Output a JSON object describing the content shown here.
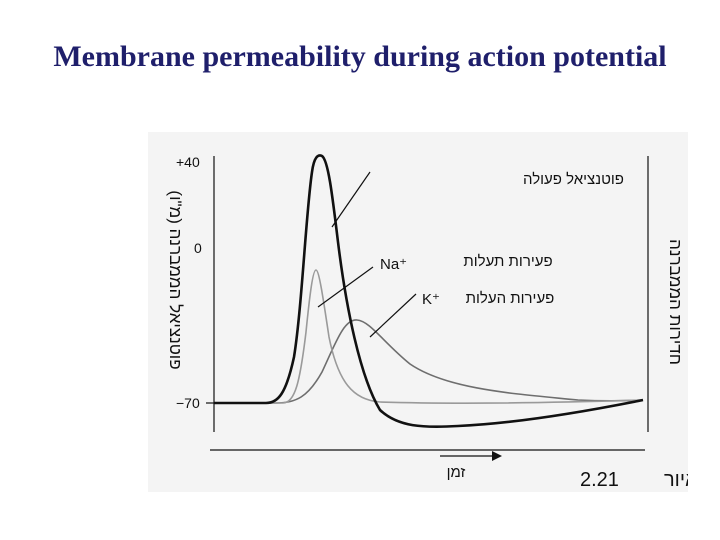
{
  "slide": {
    "title": "Membrane permeability during action potential"
  },
  "figure": {
    "y_ticks": [
      "+40",
      "0",
      "−70"
    ],
    "left_axis_label": "פוטנציאל הממברנה (מ\"ו)",
    "right_axis_label": "חדירות הממברנה",
    "x_axis_label": "זמן",
    "labels": {
      "action_potential": "פוטנציאל פעולה",
      "na_ion": "Na⁺",
      "na_permeability": "פעירות תעלות",
      "k_ion": "K⁺",
      "k_permeability": "פעירות העלות"
    },
    "figure_number": "2.21",
    "figure_word": "איור",
    "colors": {
      "action_potential": "#111111",
      "na_curve": "#9a9a9a",
      "k_curve": "#6e6e6e",
      "title": "#1f1f6b"
    }
  }
}
